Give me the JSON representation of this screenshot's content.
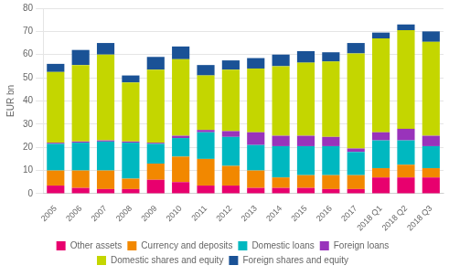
{
  "chart_data": {
    "type": "bar",
    "stacked": true,
    "categories": [
      "2005",
      "2006",
      "2007",
      "2008",
      "2009",
      "2010",
      "2011",
      "2012",
      "2013",
      "2014",
      "2015",
      "2016",
      "2017",
      "2018 Q1",
      "2018 Q2",
      "2018 Q3"
    ],
    "series": [
      {
        "name": "Other assets",
        "color": "#e8006e",
        "values": [
          3.5,
          2.5,
          2.0,
          2.0,
          6.0,
          5.0,
          3.5,
          3.5,
          2.5,
          2.5,
          2.5,
          2.0,
          2.0,
          7.0,
          7.0,
          7.0
        ]
      },
      {
        "name": "Currency and deposits",
        "color": "#f28800",
        "values": [
          6.5,
          7.5,
          8.0,
          4.5,
          7.0,
          11.0,
          11.5,
          8.5,
          7.5,
          4.5,
          5.5,
          6.0,
          6.0,
          4.0,
          5.5,
          4.0
        ]
      },
      {
        "name": "Domestic loans",
        "color": "#00b8c0",
        "values": [
          11.5,
          12.0,
          12.5,
          15.5,
          8.5,
          8.0,
          11.5,
          12.5,
          11.0,
          13.5,
          12.5,
          12.5,
          10.0,
          12.0,
          10.5,
          9.5
        ]
      },
      {
        "name": "Foreign loans",
        "color": "#9933bb",
        "values": [
          0.5,
          0.5,
          0.5,
          0.5,
          0.5,
          1.0,
          1.0,
          2.5,
          5.5,
          4.5,
          4.5,
          4.0,
          1.5,
          3.5,
          5.0,
          4.5
        ]
      },
      {
        "name": "Domestic shares and equity",
        "color": "#c4d600",
        "values": [
          30.5,
          33.0,
          37.0,
          25.5,
          31.5,
          33.0,
          23.5,
          26.5,
          27.5,
          30.0,
          31.5,
          32.5,
          41.0,
          40.5,
          42.5,
          40.5
        ]
      },
      {
        "name": "Foreign shares and equity",
        "color": "#1a5296",
        "values": [
          3.5,
          6.5,
          5.0,
          3.0,
          5.5,
          5.5,
          4.5,
          4.0,
          4.5,
          5.0,
          5.0,
          4.0,
          4.5,
          2.5,
          2.5,
          4.5
        ]
      }
    ],
    "ylabel": "EUR bn",
    "ylim": [
      0,
      80
    ],
    "yticks": [
      0,
      10,
      20,
      30,
      40,
      50,
      60,
      70,
      80
    ],
    "grid": true,
    "legend": "bottom"
  }
}
